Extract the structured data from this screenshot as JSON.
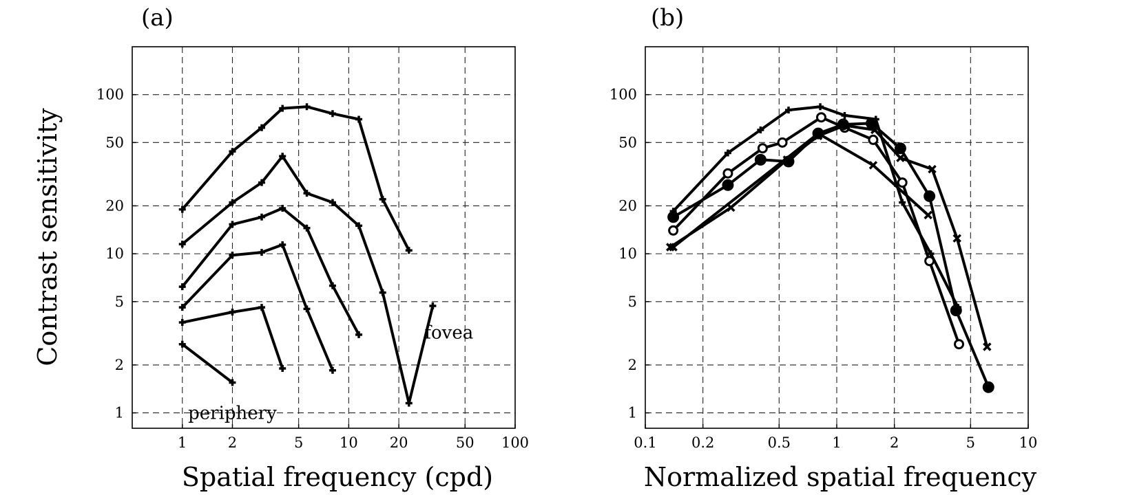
{
  "chart_data": [
    {
      "type": "line",
      "panel_label": "(a)",
      "xlabel": "Spatial frequency (cpd)",
      "ylabel": "Contrast sensitivity",
      "xscale": "log",
      "yscale": "log",
      "xlim": [
        0.5,
        100
      ],
      "ylim": [
        0.8,
        200
      ],
      "xticks": [
        1,
        2,
        5,
        10,
        20,
        50,
        100
      ],
      "xtick_labels": [
        "1",
        "2",
        "5",
        "10",
        "20",
        "50",
        "100"
      ],
      "yticks": [
        1,
        2,
        5,
        10,
        20,
        50,
        100
      ],
      "ytick_labels": [
        "1",
        "2",
        "5",
        "10",
        "20",
        "50",
        "100"
      ],
      "grid": true,
      "annotations": [
        {
          "text": "fovea",
          "x": 40,
          "y": 3.2
        },
        {
          "text": "periphery",
          "x": 2,
          "y": 1
        }
      ],
      "series": [
        {
          "marker": "plus",
          "x": [
            1,
            2,
            3,
            4,
            5.6,
            8,
            11.5,
            16,
            23
          ],
          "y": [
            19,
            44,
            62,
            82,
            84,
            76,
            70,
            22,
            10.5
          ]
        },
        {
          "marker": "plus",
          "x": [
            1,
            2,
            3,
            4,
            5.6,
            8,
            11.5,
            16,
            23,
            32
          ],
          "y": [
            11.5,
            21,
            28,
            41,
            24,
            21,
            15,
            5.7,
            1.15,
            4.7
          ]
        },
        {
          "marker": "plus",
          "x": [
            1,
            2,
            3,
            4,
            5.6,
            8,
            11.5
          ],
          "y": [
            6.2,
            15.3,
            17,
            19.3,
            14.5,
            6.3,
            3.1
          ]
        },
        {
          "marker": "plus",
          "x": [
            1,
            2,
            3,
            4,
            5.6,
            8
          ],
          "y": [
            4.6,
            9.8,
            10.2,
            11.4,
            4.5,
            1.85
          ]
        },
        {
          "marker": "plus",
          "x": [
            1,
            2,
            3,
            4
          ],
          "y": [
            3.7,
            4.3,
            4.6,
            1.9
          ]
        },
        {
          "marker": "plus",
          "x": [
            1,
            2
          ],
          "y": [
            2.7,
            1.55
          ]
        }
      ]
    },
    {
      "type": "line",
      "panel_label": "(b)",
      "xlabel": "Normalized spatial frequency",
      "ylabel": "",
      "xscale": "log",
      "yscale": "log",
      "xlim": [
        0.1,
        10
      ],
      "ylim": [
        0.8,
        200
      ],
      "xticks": [
        0.1,
        0.2,
        0.5,
        1,
        2,
        5,
        10
      ],
      "xtick_labels": [
        "0.1",
        "0.2",
        "0.5",
        "1",
        "2",
        "5",
        "10"
      ],
      "yticks": [
        1,
        2,
        5,
        10,
        20,
        50,
        100
      ],
      "ytick_labels": [
        "1",
        "2",
        "5",
        "10",
        "20",
        "50",
        "100"
      ],
      "grid": true,
      "series": [
        {
          "marker": "plus",
          "x": [
            0.14,
            0.27,
            0.4,
            0.56,
            0.82,
            1.1,
            1.6,
            2.2,
            3.1,
            4.3
          ],
          "y": [
            18.5,
            43,
            60,
            80,
            84,
            74,
            70,
            21,
            10,
            4.6
          ]
        },
        {
          "marker": "open-circle",
          "x": [
            0.14,
            0.27,
            0.41,
            0.52,
            0.83,
            1.1,
            1.55,
            2.2,
            3.05,
            4.35
          ],
          "y": [
            14,
            32,
            46,
            50,
            72,
            62,
            52,
            28,
            9,
            2.7
          ]
        },
        {
          "marker": "filled-circle",
          "x": [
            0.14,
            0.27,
            0.4,
            0.56,
            0.8,
            1.08,
            1.52,
            2.15,
            3.05,
            4.2,
            6.2
          ],
          "y": [
            17,
            27,
            39,
            38,
            57,
            65,
            66,
            46,
            23,
            4.4,
            1.45
          ]
        },
        {
          "marker": "x",
          "x": [
            0.135,
            0.28,
            0.55,
            0.8,
            1.1,
            1.58,
            2.15,
            3.15,
            4.25,
            6.1
          ],
          "y": [
            11,
            19.5,
            39,
            55,
            64,
            60,
            40,
            34,
            12.5,
            2.6
          ]
        },
        {
          "marker": "x",
          "x": [
            0.14,
            0.8,
            1.55,
            3.0
          ],
          "y": [
            11,
            57,
            36,
            17.5
          ]
        }
      ]
    }
  ]
}
